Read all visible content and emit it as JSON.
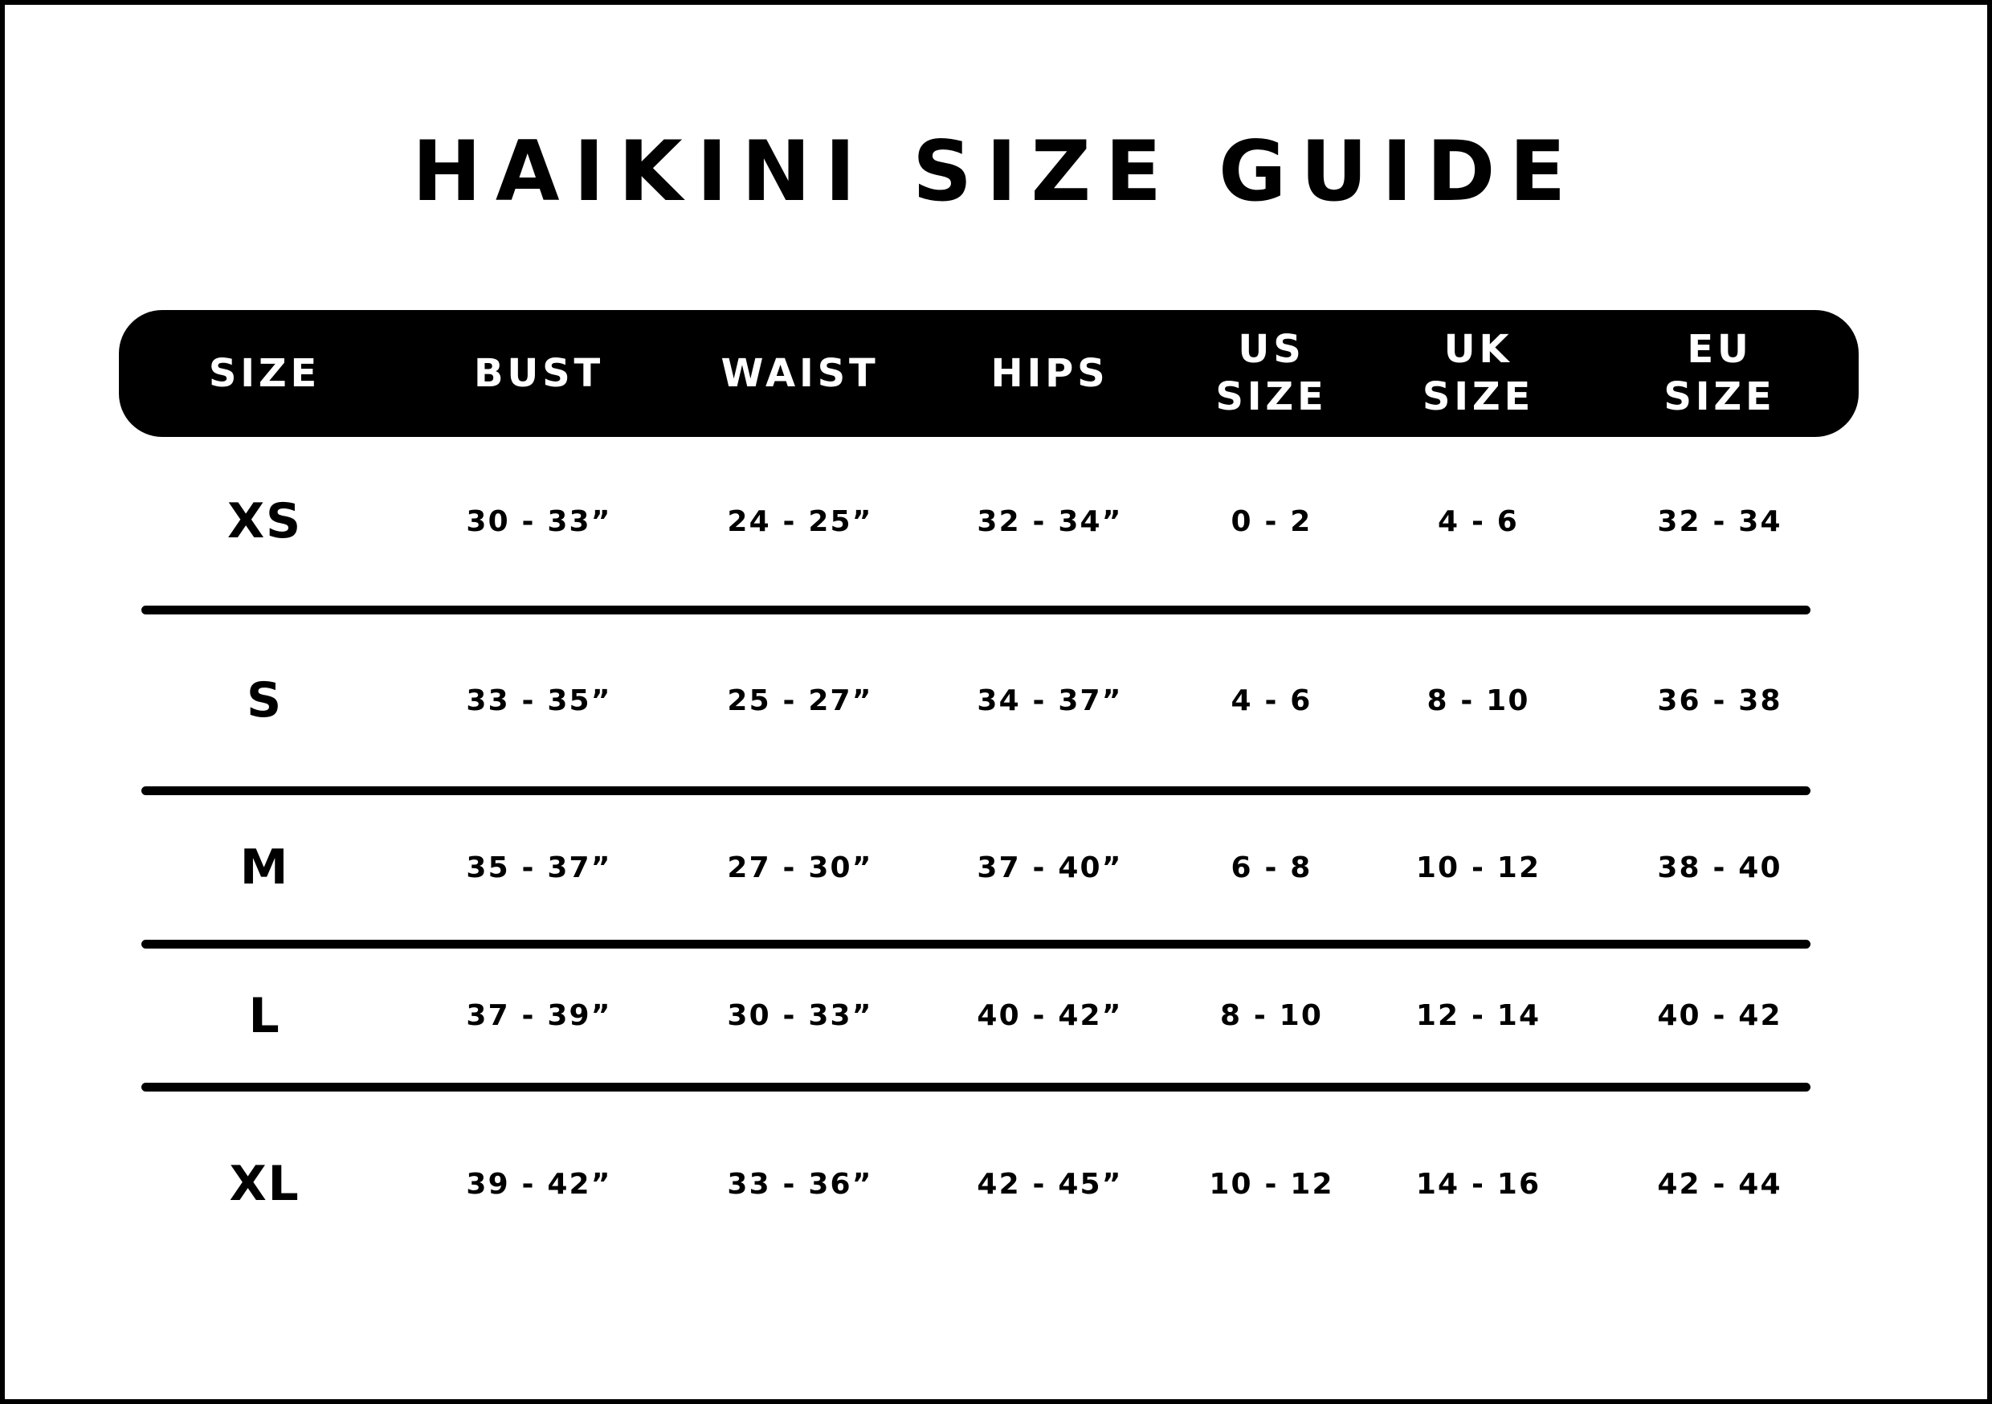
{
  "title": "HAIKINI SIZE GUIDE",
  "colors": {
    "ink": "#000000",
    "paper": "#ffffff",
    "header_bg": "#000000",
    "header_text": "#ffffff"
  },
  "header": {
    "columns": [
      {
        "lines": [
          "SIZE"
        ]
      },
      {
        "lines": [
          "BUST"
        ]
      },
      {
        "lines": [
          "WAIST"
        ]
      },
      {
        "lines": [
          "HIPS"
        ]
      },
      {
        "lines": [
          "US",
          "SIZE"
        ]
      },
      {
        "lines": [
          "UK",
          "SIZE"
        ]
      },
      {
        "lines": [
          "EU",
          "SIZE"
        ]
      }
    ]
  },
  "rows": [
    {
      "size": "XS",
      "bust": "30 - 33”",
      "waist": "24 - 25”",
      "hips": "32 - 34”",
      "us": "0 - 2",
      "uk": "4 - 6",
      "eu": "32 - 34"
    },
    {
      "size": "S",
      "bust": "33 - 35”",
      "waist": "25 - 27”",
      "hips": "34 - 37”",
      "us": "4 - 6",
      "uk": "8 - 10",
      "eu": "36 - 38"
    },
    {
      "size": "M",
      "bust": "35 - 37”",
      "waist": "27 - 30”",
      "hips": "37 - 40”",
      "us": "6 - 8",
      "uk": "10 - 12",
      "eu": "38 - 40"
    },
    {
      "size": "L",
      "bust": "37 - 39”",
      "waist": "30 - 33”",
      "hips": "40 - 42”",
      "us": "8 - 10",
      "uk": "12 - 14",
      "eu": "40 - 42"
    },
    {
      "size": "XL",
      "bust": "39 - 42”",
      "waist": "33 - 36”",
      "hips": "42 - 45”",
      "us": "10 - 12",
      "uk": "14 - 16",
      "eu": "42 - 44"
    }
  ],
  "chart_data": {
    "type": "table",
    "title": "HAIKINI SIZE GUIDE",
    "columns": [
      "SIZE",
      "BUST",
      "WAIST",
      "HIPS",
      "US SIZE",
      "UK SIZE",
      "EU SIZE"
    ],
    "rows": [
      [
        "XS",
        "30 - 33\"",
        "24 - 25\"",
        "32 - 34\"",
        "0 - 2",
        "4 - 6",
        "32 - 34"
      ],
      [
        "S",
        "33 - 35\"",
        "25 - 27\"",
        "34 - 37\"",
        "4 - 6",
        "8 - 10",
        "36 - 38"
      ],
      [
        "M",
        "35 - 37\"",
        "27 - 30\"",
        "37 - 40\"",
        "6 - 8",
        "10 - 12",
        "38 - 40"
      ],
      [
        "L",
        "37 - 39\"",
        "30 - 33\"",
        "40 - 42\"",
        "8 - 10",
        "12 - 14",
        "40 - 42"
      ],
      [
        "XL",
        "39 - 42\"",
        "33 - 36\"",
        "42 - 45\"",
        "10 - 12",
        "14 - 16",
        "42 - 44"
      ]
    ],
    "layout": {
      "header_style": "black rounded pill, white text",
      "row_separators": "thick black rounded rules",
      "grid": "horizontal rules only"
    }
  }
}
